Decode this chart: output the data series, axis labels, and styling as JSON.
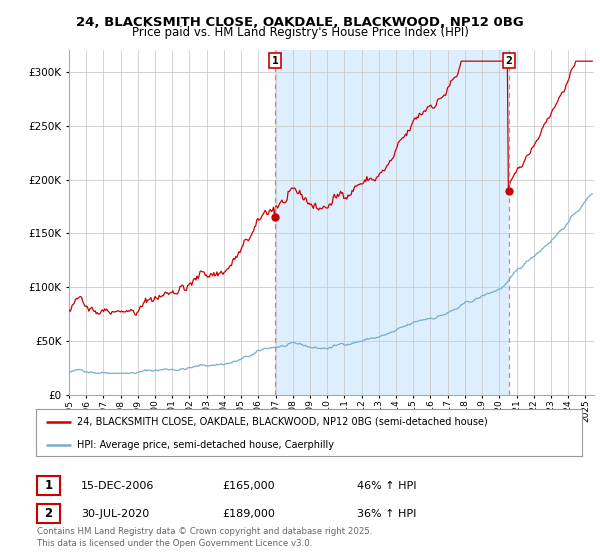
{
  "title_line1": "24, BLACKSMITH CLOSE, OAKDALE, BLACKWOOD, NP12 0BG",
  "title_line2": "Price paid vs. HM Land Registry's House Price Index (HPI)",
  "sale1_date": "15-DEC-2006",
  "sale1_price": 165000,
  "sale1_pct": "46% ↑ HPI",
  "sale2_date": "30-JUL-2020",
  "sale2_price": 189000,
  "sale2_pct": "36% ↑ HPI",
  "legend_line1": "24, BLACKSMITH CLOSE, OAKDALE, BLACKWOOD, NP12 0BG (semi-detached house)",
  "legend_line2": "HPI: Average price, semi-detached house, Caerphilly",
  "footer": "Contains HM Land Registry data © Crown copyright and database right 2025.\nThis data is licensed under the Open Government Licence v3.0.",
  "price_color": "#cc0000",
  "hpi_color": "#7aadcf",
  "shade_color": "#ddeeff",
  "sale_vline_color": "#e08080",
  "background_color": "#ffffff",
  "grid_color": "#cccccc",
  "xmin": 1995,
  "xmax": 2025.5,
  "ymin": 0,
  "ymax": 320000
}
